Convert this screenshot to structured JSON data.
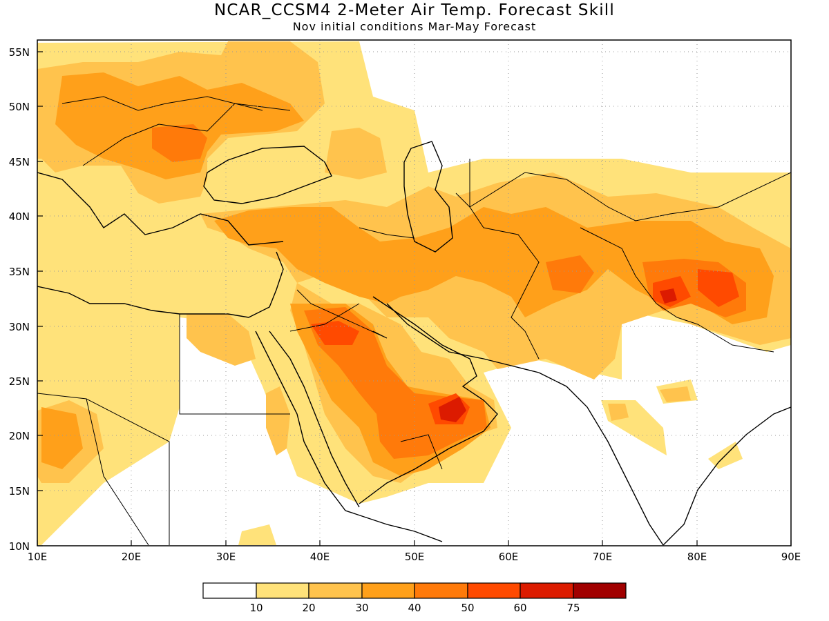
{
  "title": "NCAR_CCSM4 2-Meter Air Temp. Forecast Skill",
  "subtitle": "Nov initial conditions  Mar-May Forecast",
  "map": {
    "lon_range": [
      10,
      90
    ],
    "lat_range": [
      10,
      56
    ],
    "lon_ticks": [
      "10E",
      "20E",
      "30E",
      "40E",
      "50E",
      "60E",
      "70E",
      "80E",
      "90E"
    ],
    "lat_ticks": [
      "10N",
      "15N",
      "20N",
      "25N",
      "30N",
      "35N",
      "40N",
      "45N",
      "50N",
      "55N"
    ],
    "grid": "dotted"
  },
  "colorbar": {
    "colors": [
      "#ffffff",
      "#ffe27a",
      "#ffc34d",
      "#ffa01a",
      "#ff7a0a",
      "#ff4a00",
      "#dc1b00",
      "#a10000"
    ],
    "labels": [
      "10",
      "20",
      "30",
      "40",
      "50",
      "60",
      "75"
    ]
  }
}
